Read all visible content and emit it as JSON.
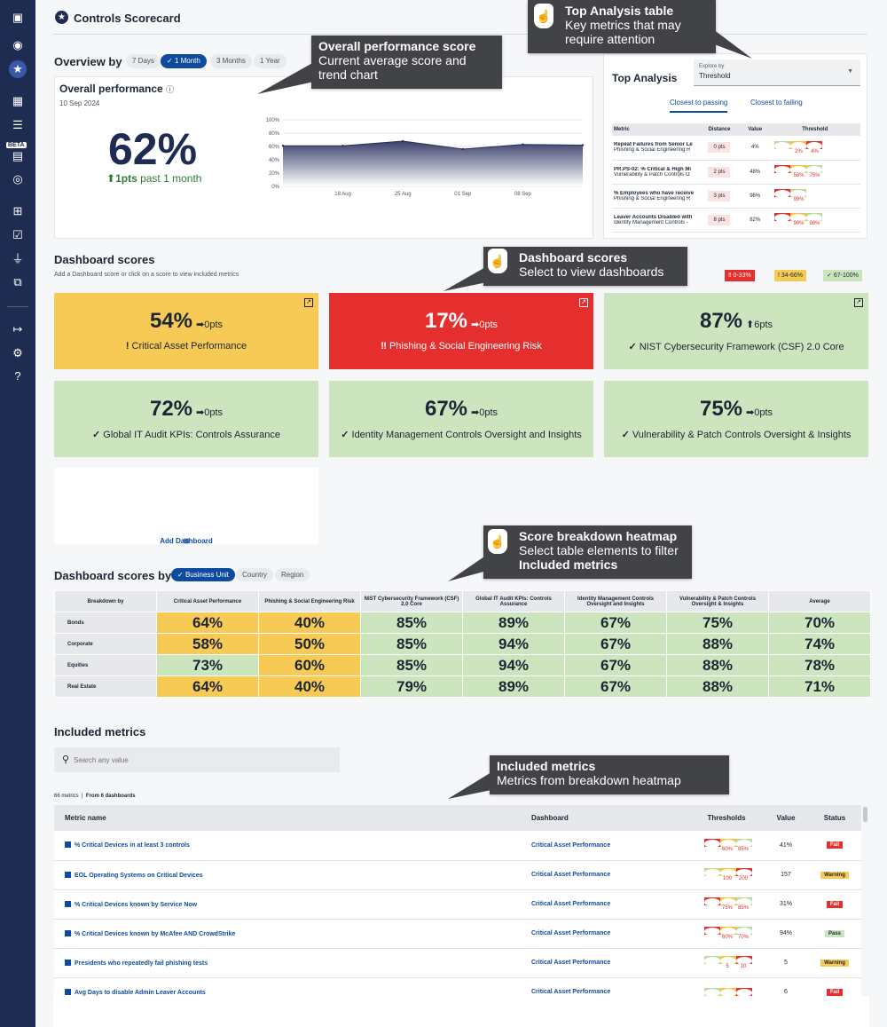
{
  "page": {
    "title": "Controls Scorecard"
  },
  "sidebar": {
    "beta_label": "BETA"
  },
  "overview": {
    "label": "Overview by",
    "ranges": [
      "7 Days",
      "1 Month",
      "3 Months",
      "1 Year"
    ],
    "active_range_check": "✓"
  },
  "overall": {
    "title": "Overall performance",
    "date": "10 Sep 2024",
    "score": "62%",
    "delta_arrow": "⬆",
    "delta_value": "1pts",
    "delta_text": " past 1 month"
  },
  "chart_data": {
    "type": "area",
    "x": [
      "10 Aug",
      "18 Aug",
      "25 Aug",
      "01 Sep",
      "08 Sep",
      "10 Sep"
    ],
    "tick_labels_x": [
      "18 Aug",
      "25 Aug",
      "01 Sep",
      "08 Sep"
    ],
    "tick_labels_y": [
      "100%",
      "80%",
      "60%",
      "40%",
      "20%",
      "0%"
    ],
    "series": [
      {
        "values": [
          61,
          61,
          68,
          56,
          63,
          62
        ]
      }
    ],
    "ylim": [
      0,
      100
    ],
    "grid": true
  },
  "top_analysis": {
    "title": "Top Analysis",
    "explore_label": "Explore by",
    "explore_value": "Threshold",
    "tabs": [
      "Closest to passing",
      "Closest to failing"
    ],
    "headers": [
      "Metric",
      "Distance",
      "Value",
      "Threshold"
    ],
    "rows": [
      {
        "metric": "Repeat Failures from Senior Le",
        "dashboard": "Phishing & Social Engineering R",
        "distance": "0 pts",
        "value": "4%",
        "order": [
          "g",
          "y",
          "r"
        ],
        "nums": [
          "2%",
          "4%"
        ]
      },
      {
        "metric": "PR.PS-02: % Critical & High Mi",
        "dashboard": "Vulnerability & Patch Controls O",
        "distance": "2 pts",
        "value": "48%",
        "order": [
          "r",
          "y",
          "g"
        ],
        "nums": [
          "50%",
          "75%"
        ]
      },
      {
        "metric": "% Employees who have receive",
        "dashboard": "Phishing & Social Engineering R",
        "distance": "3 pts",
        "value": "96%",
        "order": [
          "r",
          "g"
        ],
        "nums": [
          "99%"
        ]
      },
      {
        "metric": "Leaver Accounts Disabled with",
        "dashboard": "Identity Management Controls -",
        "distance": "8 pts",
        "value": "82%",
        "order": [
          "r",
          "y",
          "g"
        ],
        "nums": [
          "90%",
          "98%"
        ]
      }
    ]
  },
  "dashboards": {
    "title": "Dashboard scores",
    "subtitle": "Add a Dashboard score or click on a score to view included metrics",
    "legend": [
      {
        "icon": "‼",
        "label": "0-33%"
      },
      {
        "icon": "!",
        "label": "34-66%"
      },
      {
        "icon": "✓",
        "label": "67-100%"
      }
    ],
    "tiles": [
      {
        "pct": "54%",
        "arrow": "➡",
        "delta": "0pts",
        "icon": "!",
        "name": "Critical Asset Performance",
        "tone": "y",
        "ext": true
      },
      {
        "pct": "17%",
        "arrow": "➡",
        "delta": "0pts",
        "icon": "‼",
        "name": "Phishing & Social Engineering Risk",
        "tone": "r",
        "ext": true
      },
      {
        "pct": "87%",
        "arrow": "⬆",
        "delta": "6pts",
        "icon": "✓",
        "name": "NIST Cybersecurity Framework (CSF) 2.0 Core",
        "tone": "g",
        "ext": true
      },
      {
        "pct": "72%",
        "arrow": "➡",
        "delta": "0pts",
        "icon": "✓",
        "name": "Global IT Audit KPIs: Controls Assurance",
        "tone": "g",
        "ext": false
      },
      {
        "pct": "67%",
        "arrow": "➡",
        "delta": "0pts",
        "icon": "✓",
        "name": "Identity Management Controls Oversight and Insights",
        "tone": "g",
        "ext": false
      },
      {
        "pct": "75%",
        "arrow": "➡",
        "delta": "0pts",
        "icon": "✓",
        "name": "Vulnerability & Patch Controls Oversight & Insights",
        "tone": "g",
        "ext": false
      }
    ],
    "add_label": "Add Dashboard"
  },
  "heatmap": {
    "title": "Dashboard scores by",
    "filters": [
      "Business Unit",
      "Country",
      "Region"
    ],
    "corner": "Breakdown by",
    "columns": [
      "Critical Asset Performance",
      "Phishing & Social Engineering Risk",
      "NIST Cybersecurity Framework (CSF) 2.0 Core",
      "Global IT Audit KPIs: Controls Assurance",
      "Identity Management Controls Oversight and Insights",
      "Vulnerability & Patch Controls Oversight & Insights",
      "Average"
    ],
    "rows": [
      {
        "label": "Bonds",
        "values": [
          "64%",
          "40%",
          "85%",
          "89%",
          "67%",
          "75%",
          "70%"
        ],
        "tones": [
          "y",
          "y",
          "g",
          "g",
          "g",
          "g",
          "g"
        ]
      },
      {
        "label": "Corporate",
        "values": [
          "58%",
          "50%",
          "85%",
          "94%",
          "67%",
          "88%",
          "74%"
        ],
        "tones": [
          "y",
          "y",
          "g",
          "g",
          "g",
          "g",
          "g"
        ]
      },
      {
        "label": "Equities",
        "values": [
          "73%",
          "60%",
          "85%",
          "94%",
          "67%",
          "88%",
          "78%"
        ],
        "tones": [
          "g",
          "y",
          "g",
          "g",
          "g",
          "g",
          "g"
        ]
      },
      {
        "label": "Real Estate",
        "values": [
          "64%",
          "40%",
          "79%",
          "89%",
          "67%",
          "88%",
          "71%"
        ],
        "tones": [
          "y",
          "y",
          "g",
          "g",
          "g",
          "g",
          "g"
        ]
      }
    ]
  },
  "included": {
    "title": "Included metrics",
    "search_placeholder": "Search any value",
    "count": "66 metrics",
    "from": "From 6 dashboards",
    "headers": [
      "Metric name",
      "Dashboard",
      "Thresholds",
      "Value",
      "Status"
    ],
    "rows": [
      {
        "name": "% Critical Devices in at least 3 controls",
        "dashboard": "Critical Asset Performance",
        "order": [
          "r",
          "y",
          "g"
        ],
        "nums": [
          "60%",
          "85%"
        ],
        "value": "41%",
        "status": "Fail",
        "st": "fail"
      },
      {
        "name": "EOL Operating Systems on Critical Devices",
        "dashboard": "Critical Asset Performance",
        "order": [
          "g",
          "y",
          "r"
        ],
        "nums": [
          "100",
          "200"
        ],
        "value": "157",
        "status": "Warning",
        "st": "warn"
      },
      {
        "name": "% Critical Devices known by Service Now",
        "dashboard": "Critical Asset Performance",
        "order": [
          "r",
          "y",
          "g"
        ],
        "nums": [
          "75%",
          "85%"
        ],
        "value": "31%",
        "status": "Fail",
        "st": "fail"
      },
      {
        "name": "% Critical Devices known by McAfee AND CrowdStrike",
        "dashboard": "Critical Asset Performance",
        "order": [
          "r",
          "y",
          "g"
        ],
        "nums": [
          "60%",
          "70%"
        ],
        "value": "94%",
        "status": "Pass",
        "st": "pass"
      },
      {
        "name": "Presidents who repeatedly fail phishing tests",
        "dashboard": "Critical Asset Performance",
        "order": [
          "g",
          "y",
          "r"
        ],
        "nums": [
          "5",
          "10"
        ],
        "value": "5",
        "status": "Warning",
        "st": "warn"
      },
      {
        "name": "Avg Days to disable Admin Leaver Accounts",
        "dashboard": "Critical Asset Performance",
        "order": [
          "g",
          "y",
          "r"
        ],
        "nums": [],
        "value": "6",
        "status": "Fail",
        "st": "fail"
      }
    ]
  },
  "callouts": {
    "top_analysis": {
      "title": "Top Analysis table",
      "body": "Key metrics that may require attention"
    },
    "overall": {
      "title": "Overall performance score",
      "body": "Current average score and trend chart"
    },
    "dashboards": {
      "title": "Dashboard scores",
      "body": "Select to view dashboards"
    },
    "heatmap": {
      "title": "Score breakdown heatmap",
      "body": "Select table elements to filter ",
      "bold": "Included metrics"
    },
    "included": {
      "title": "Included metrics",
      "body": "Metrics from breakdown heatmap"
    }
  },
  "colors": {
    "navy": "#1f2c52",
    "accent": "#0d4b9e",
    "red": "#e52f2f",
    "yellow": "#f7c955",
    "green": "#cde5bf"
  }
}
